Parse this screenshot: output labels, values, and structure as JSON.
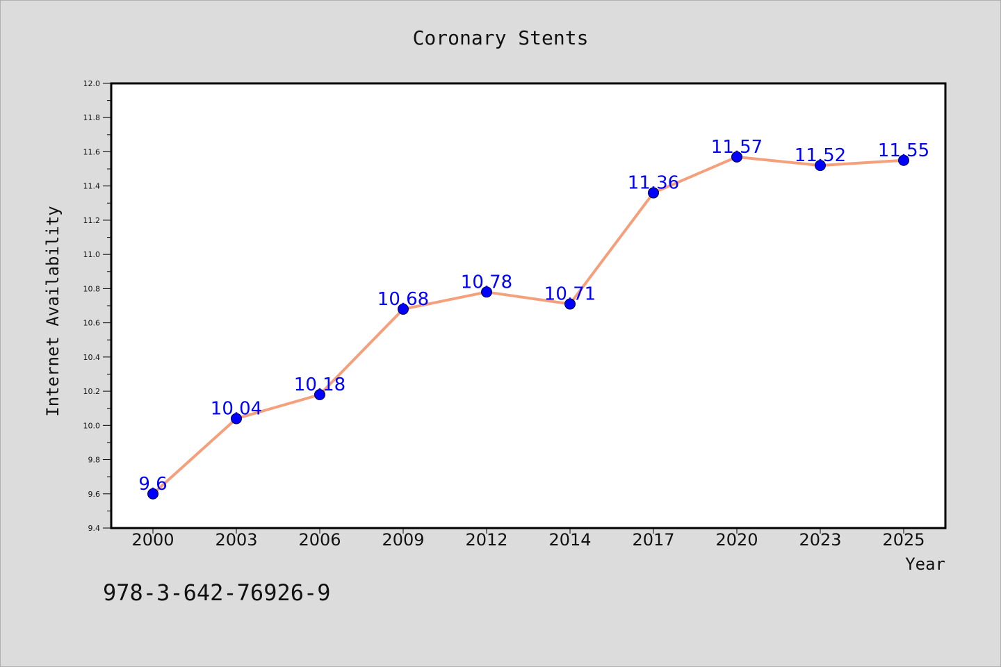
{
  "footer_text": "978-3-642-76926-9",
  "colors": {
    "background": "#dcdcdc",
    "plot_background": "#ffffff",
    "line": "#f4a07c",
    "marker": "#0000ff",
    "data_label": "#0000ff"
  },
  "chart_data": {
    "type": "line",
    "title": "Coronary Stents",
    "xlabel": "Year",
    "ylabel": "Internet Availability",
    "categories": [
      "2000",
      "2003",
      "2006",
      "2009",
      "2012",
      "2014",
      "2017",
      "2020",
      "2023",
      "2025"
    ],
    "series": [
      {
        "values": [
          9.6,
          10.04,
          10.18,
          10.68,
          10.78,
          10.71,
          11.36,
          11.57,
          11.52,
          11.55
        ],
        "labels": [
          "9.6",
          "10.04",
          "10.18",
          "10.68",
          "10.78",
          "10.71",
          "11.36",
          "11.57",
          "11.52",
          "11.55"
        ]
      }
    ],
    "ylim": [
      9.4,
      12.0
    ],
    "yticks": [
      "9.4",
      "9.6",
      "9.8",
      "10.0",
      "10.2",
      "10.4",
      "10.6",
      "10.8",
      "11.0",
      "11.2",
      "11.4",
      "11.6",
      "11.8",
      "12.0"
    ],
    "grid": false,
    "legend": "none"
  }
}
